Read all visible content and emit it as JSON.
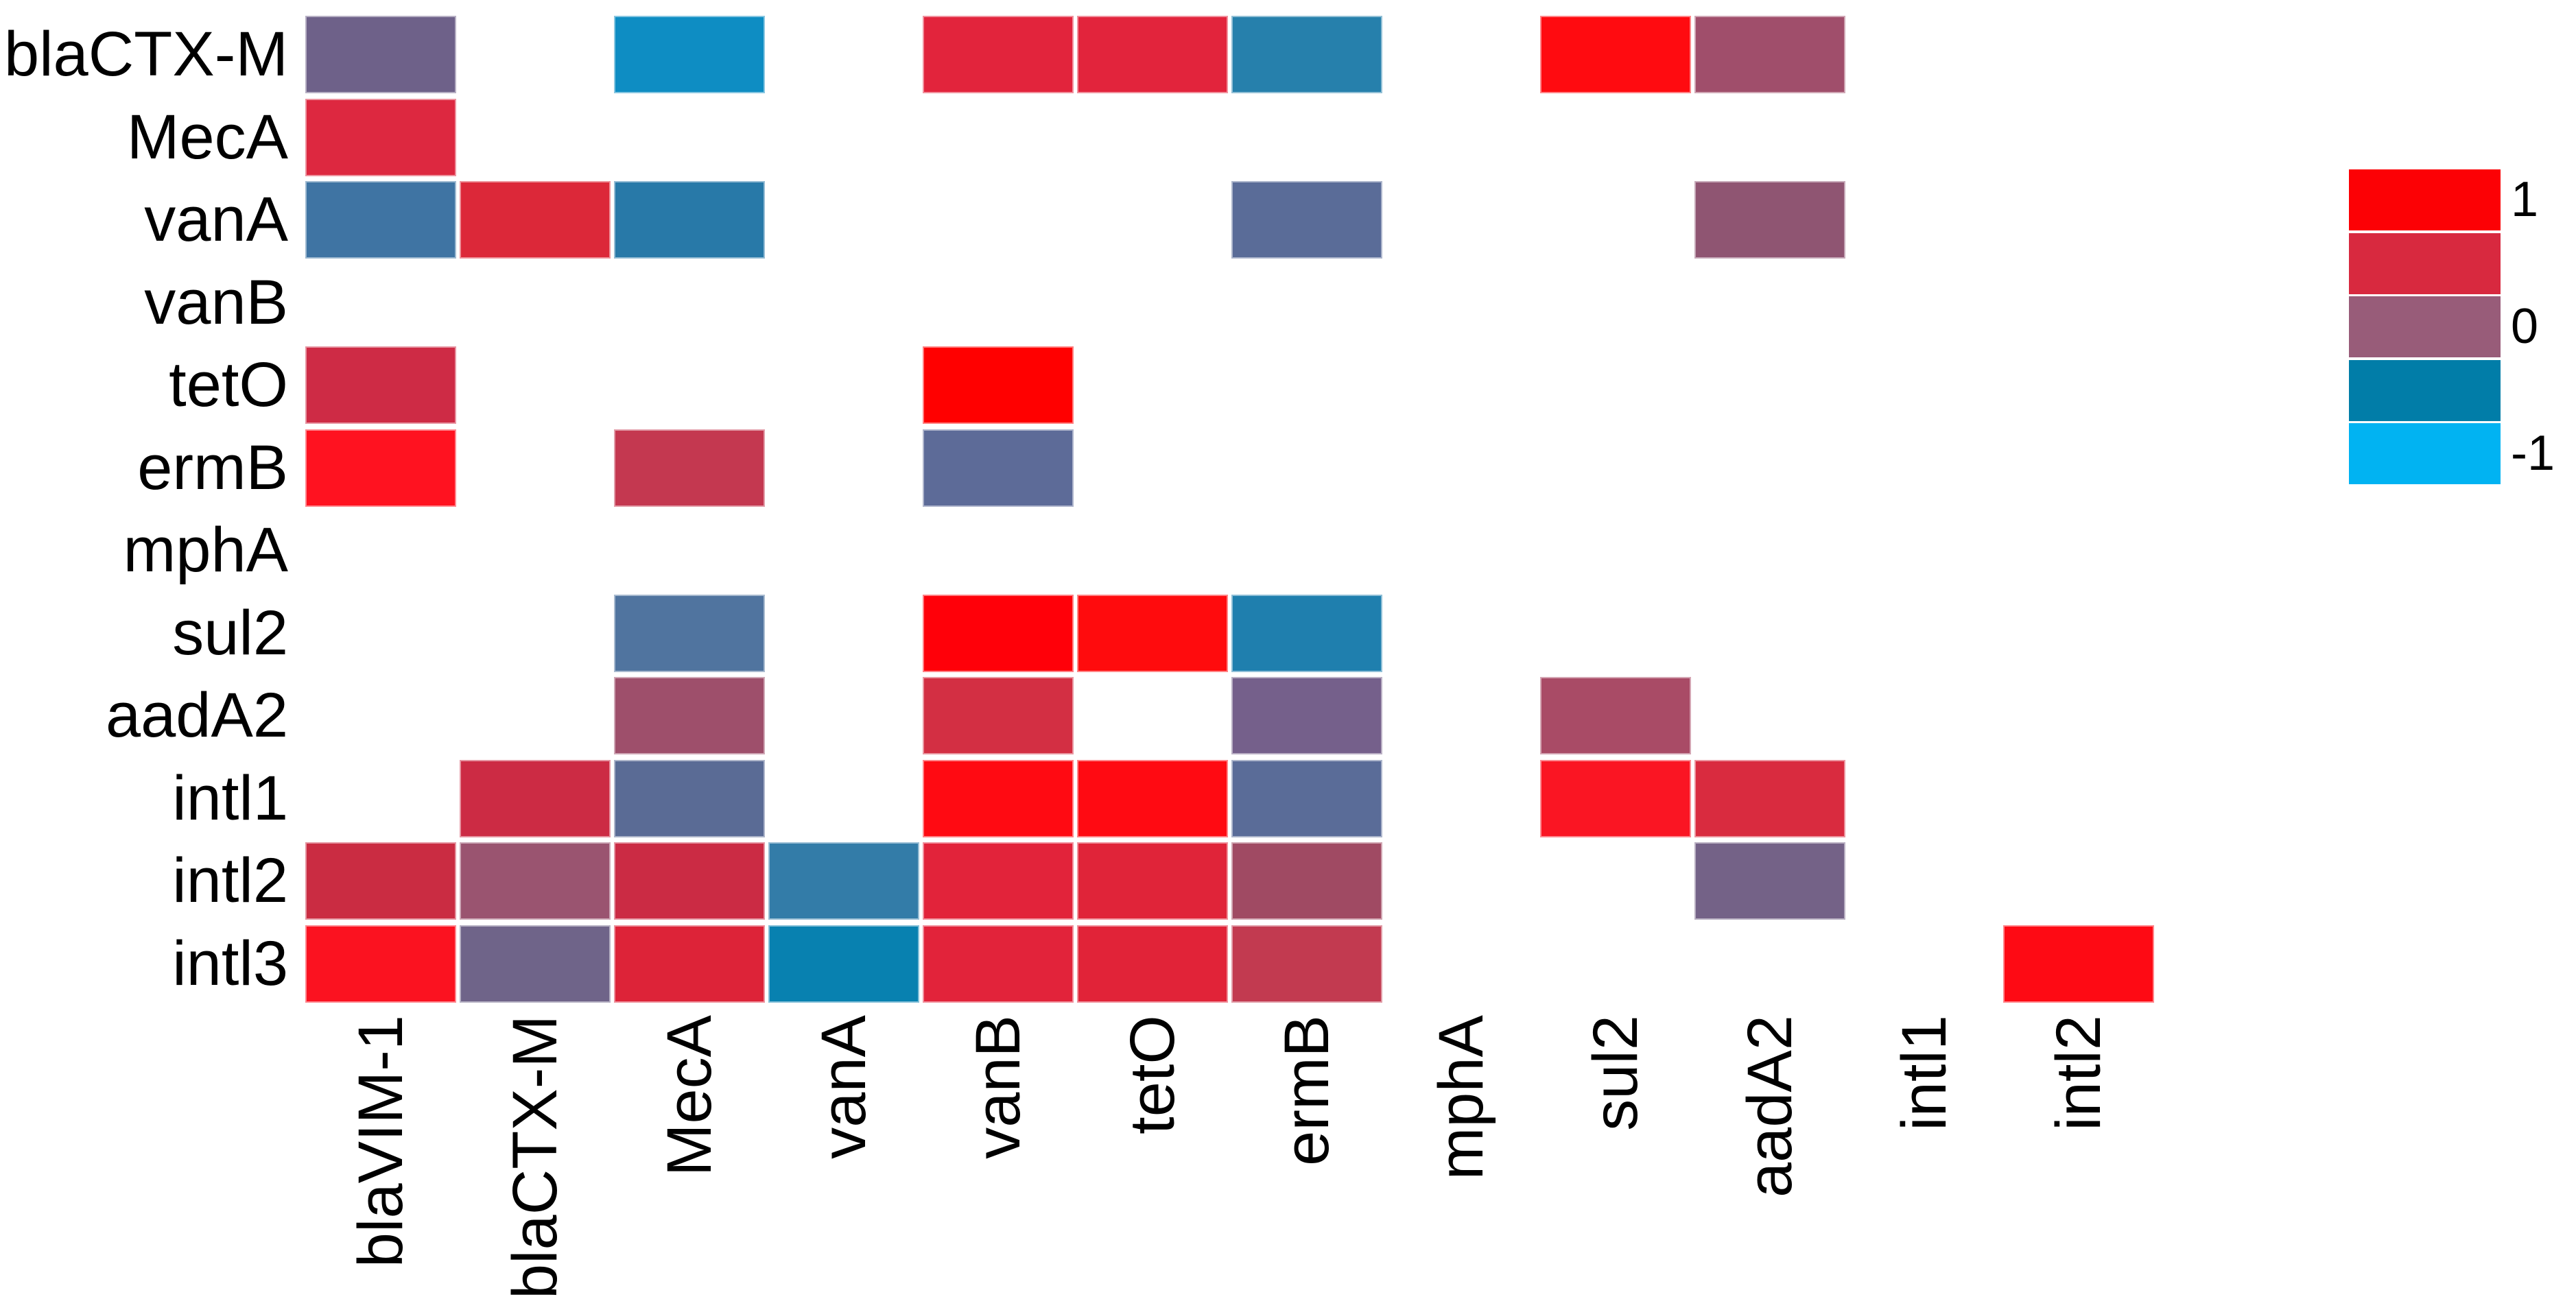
{
  "chart_data": {
    "type": "heatmap",
    "subtype": "lower-triangular-correlation-matrix",
    "title": "",
    "xlabel": "",
    "ylabel": "",
    "grid": false,
    "legend_position": "right",
    "x_categories": [
      "blaVIM-1",
      "blaCTX-M",
      "MecA",
      "vanA",
      "vanB",
      "tetO",
      "ermB",
      "mphA",
      "sul2",
      "aadA2",
      "intl1",
      "intl2"
    ],
    "y_categories": [
      "blaCTX-M",
      "MecA",
      "vanA",
      "vanB",
      "tetO",
      "ermB",
      "mphA",
      "sul2",
      "aadA2",
      "intl1",
      "intl2",
      "intl3"
    ],
    "value_range": [
      -1,
      1
    ],
    "colorbar": {
      "block_colors": [
        "#FC0105",
        "#D8293F",
        "#985C79",
        "#017DA8",
        "#01B3F2"
      ],
      "ticks": [
        {
          "label": "1",
          "block_index": 0
        },
        {
          "label": "0",
          "block_index": 2
        },
        {
          "label": "-1",
          "block_index": 4
        }
      ]
    },
    "cells": [
      {
        "row": "blaCTX-M",
        "col": "blaVIM-1",
        "color": "#6E6189",
        "value": -0.15
      },
      {
        "row": "blaCTX-M",
        "col": "MecA",
        "color": "#0E8DC3",
        "value": -0.6
      },
      {
        "row": "blaCTX-M",
        "col": "vanB",
        "color": "#E2243C",
        "value": 0.7
      },
      {
        "row": "blaCTX-M",
        "col": "tetO",
        "color": "#E2243C",
        "value": 0.7
      },
      {
        "row": "blaCTX-M",
        "col": "ermB",
        "color": "#2680AC",
        "value": -0.5
      },
      {
        "row": "blaCTX-M",
        "col": "sul2",
        "color": "#FF0B10",
        "value": 0.95
      },
      {
        "row": "blaCTX-M",
        "col": "aadA2",
        "color": "#A04E6B",
        "value": 0.2
      },
      {
        "row": "MecA",
        "col": "blaVIM-1",
        "color": "#DD2840",
        "value": 0.65
      },
      {
        "row": "vanA",
        "col": "blaVIM-1",
        "color": "#3F74A3",
        "value": -0.4
      },
      {
        "row": "vanA",
        "col": "blaCTX-M",
        "color": "#DC2839",
        "value": 0.65
      },
      {
        "row": "vanA",
        "col": "MecA",
        "color": "#2879A8",
        "value": -0.5
      },
      {
        "row": "vanA",
        "col": "ermB",
        "color": "#5A6C98",
        "value": -0.3
      },
      {
        "row": "vanA",
        "col": "aadA2",
        "color": "#8F5572",
        "value": 0.0
      },
      {
        "row": "tetO",
        "col": "blaVIM-1",
        "color": "#CE2B45",
        "value": 0.6
      },
      {
        "row": "tetO",
        "col": "vanB",
        "color": "#FF0000",
        "value": 1.0
      },
      {
        "row": "ermB",
        "col": "blaVIM-1",
        "color": "#FF1220",
        "value": 0.95
      },
      {
        "row": "ermB",
        "col": "MecA",
        "color": "#C43850",
        "value": 0.45
      },
      {
        "row": "ermB",
        "col": "vanB",
        "color": "#5D6B98",
        "value": -0.3
      },
      {
        "row": "sul2",
        "col": "MecA",
        "color": "#50749F",
        "value": -0.35
      },
      {
        "row": "sul2",
        "col": "vanB",
        "color": "#FF0009",
        "value": 0.95
      },
      {
        "row": "sul2",
        "col": "tetO",
        "color": "#FF0B0D",
        "value": 0.95
      },
      {
        "row": "sul2",
        "col": "ermB",
        "color": "#1F7FAE",
        "value": -0.5
      },
      {
        "row": "aadA2",
        "col": "MecA",
        "color": "#9E4F6B",
        "value": 0.2
      },
      {
        "row": "aadA2",
        "col": "vanB",
        "color": "#D32F43",
        "value": 0.6
      },
      {
        "row": "aadA2",
        "col": "ermB",
        "color": "#75608B",
        "value": -0.1
      },
      {
        "row": "aadA2",
        "col": "sul2",
        "color": "#A94B66",
        "value": 0.25
      },
      {
        "row": "intl1",
        "col": "blaCTX-M",
        "color": "#CC2B44",
        "value": 0.6
      },
      {
        "row": "intl1",
        "col": "MecA",
        "color": "#5A6B95",
        "value": -0.3
      },
      {
        "row": "intl1",
        "col": "vanB",
        "color": "#FF0A12",
        "value": 0.95
      },
      {
        "row": "intl1",
        "col": "tetO",
        "color": "#FF0A12",
        "value": 0.95
      },
      {
        "row": "intl1",
        "col": "ermB",
        "color": "#5A6C98",
        "value": -0.3
      },
      {
        "row": "intl1",
        "col": "sul2",
        "color": "#FA1523",
        "value": 0.95
      },
      {
        "row": "intl1",
        "col": "aadA2",
        "color": "#D92B3F",
        "value": 0.6
      },
      {
        "row": "intl2",
        "col": "blaVIM-1",
        "color": "#CA2C42",
        "value": 0.6
      },
      {
        "row": "intl2",
        "col": "blaCTX-M",
        "color": "#9A5470",
        "value": 0.1
      },
      {
        "row": "intl2",
        "col": "MecA",
        "color": "#CB2B44",
        "value": 0.6
      },
      {
        "row": "intl2",
        "col": "vanA",
        "color": "#337CA8",
        "value": -0.45
      },
      {
        "row": "intl2",
        "col": "vanB",
        "color": "#E2233A",
        "value": 0.7
      },
      {
        "row": "intl2",
        "col": "tetO",
        "color": "#E02439",
        "value": 0.7
      },
      {
        "row": "intl2",
        "col": "ermB",
        "color": "#A04A63",
        "value": 0.3
      },
      {
        "row": "intl2",
        "col": "aadA2",
        "color": "#746287",
        "value": -0.1
      },
      {
        "row": "intl3",
        "col": "blaVIM-1",
        "color": "#FB1220",
        "value": 0.95
      },
      {
        "row": "intl3",
        "col": "blaCTX-M",
        "color": "#6F6489",
        "value": -0.15
      },
      {
        "row": "intl3",
        "col": "MecA",
        "color": "#DD2338",
        "value": 0.65
      },
      {
        "row": "intl3",
        "col": "vanA",
        "color": "#0881B0",
        "value": -0.55
      },
      {
        "row": "intl3",
        "col": "vanB",
        "color": "#E2233A",
        "value": 0.7
      },
      {
        "row": "intl3",
        "col": "tetO",
        "color": "#E12338",
        "value": 0.7
      },
      {
        "row": "intl3",
        "col": "ermB",
        "color": "#C23A50",
        "value": 0.45
      },
      {
        "row": "intl3",
        "col": "intl2",
        "color": "#FE0A14",
        "value": 0.95
      }
    ]
  }
}
